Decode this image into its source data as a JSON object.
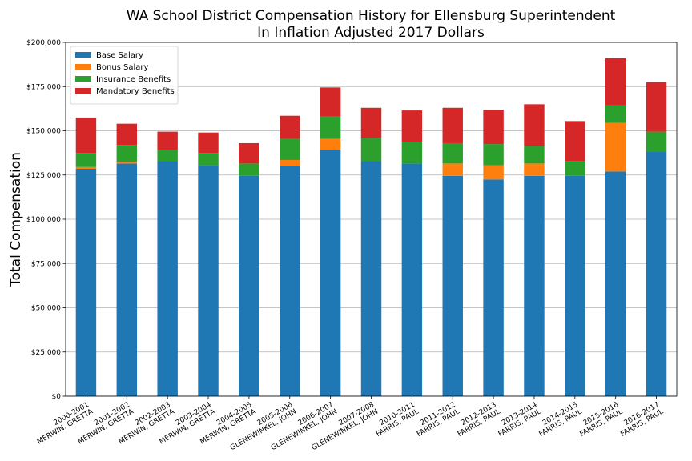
{
  "chart_data": {
    "type": "bar",
    "stacked": true,
    "title": "WA School District Compensation History for Ellensburg Superintendent",
    "subtitle": "In Inflation Adjusted 2017 Dollars",
    "xlabel": "",
    "ylabel": "Total Compensation",
    "ylim": [
      0,
      200000
    ],
    "yticks": [
      0,
      25000,
      50000,
      75000,
      100000,
      125000,
      150000,
      175000,
      200000
    ],
    "ytick_labels": [
      "$0",
      "$25,000",
      "$50,000",
      "$75,000",
      "$100,000",
      "$125,000",
      "$150,000",
      "$175,000",
      "$200,000"
    ],
    "grid": "horizontal",
    "legend_position": "top-left",
    "categories": [
      [
        "2000-2001",
        "MERWIN, GRETTA"
      ],
      [
        "2001-2002",
        "MERWIN, GRETTA"
      ],
      [
        "2002-2003",
        "MERWIN, GRETTA"
      ],
      [
        "2003-2004",
        "MERWIN, GRETTA"
      ],
      [
        "2004-2005",
        "MERWIN, GRETTA"
      ],
      [
        "2005-2006",
        "GLENEWINKEL, JOHN"
      ],
      [
        "2006-2007",
        "GLENEWINKEL, JOHN"
      ],
      [
        "2007-2008",
        "GLENEWINKEL, JOHN"
      ],
      [
        "2010-2011",
        "FARRIS, PAUL"
      ],
      [
        "2011-2012",
        "FARRIS, PAUL"
      ],
      [
        "2012-2013",
        "FARRIS, PAUL"
      ],
      [
        "2013-2014",
        "FARRIS, PAUL"
      ],
      [
        "2014-2015",
        "FARRIS, PAUL"
      ],
      [
        "2015-2016",
        "FARRIS, PAUL"
      ],
      [
        "2016-2017",
        "FARRIS, PAUL"
      ]
    ],
    "series": [
      {
        "name": "Base Salary",
        "color": "#1f77b4",
        "values": [
          128500,
          131500,
          133000,
          130500,
          124500,
          130000,
          139000,
          133000,
          131500,
          124500,
          122500,
          124500,
          124500,
          127000,
          138000
        ]
      },
      {
        "name": "Bonus Salary",
        "color": "#ff7f0e",
        "values": [
          1000,
          1000,
          0,
          0,
          0,
          3500,
          6500,
          0,
          0,
          7000,
          8000,
          7000,
          0,
          27500,
          0
        ]
      },
      {
        "name": "Insurance Benefits",
        "color": "#2ca02c",
        "values": [
          8000,
          9500,
          6000,
          7000,
          7000,
          12000,
          12500,
          13000,
          12000,
          11500,
          12000,
          10000,
          8500,
          10000,
          11500
        ]
      },
      {
        "name": "Mandatory Benefits",
        "color": "#d62728",
        "values": [
          20000,
          12000,
          10500,
          11500,
          11500,
          13000,
          16500,
          17000,
          18000,
          20000,
          19500,
          23500,
          22500,
          26500,
          28000
        ]
      }
    ]
  }
}
